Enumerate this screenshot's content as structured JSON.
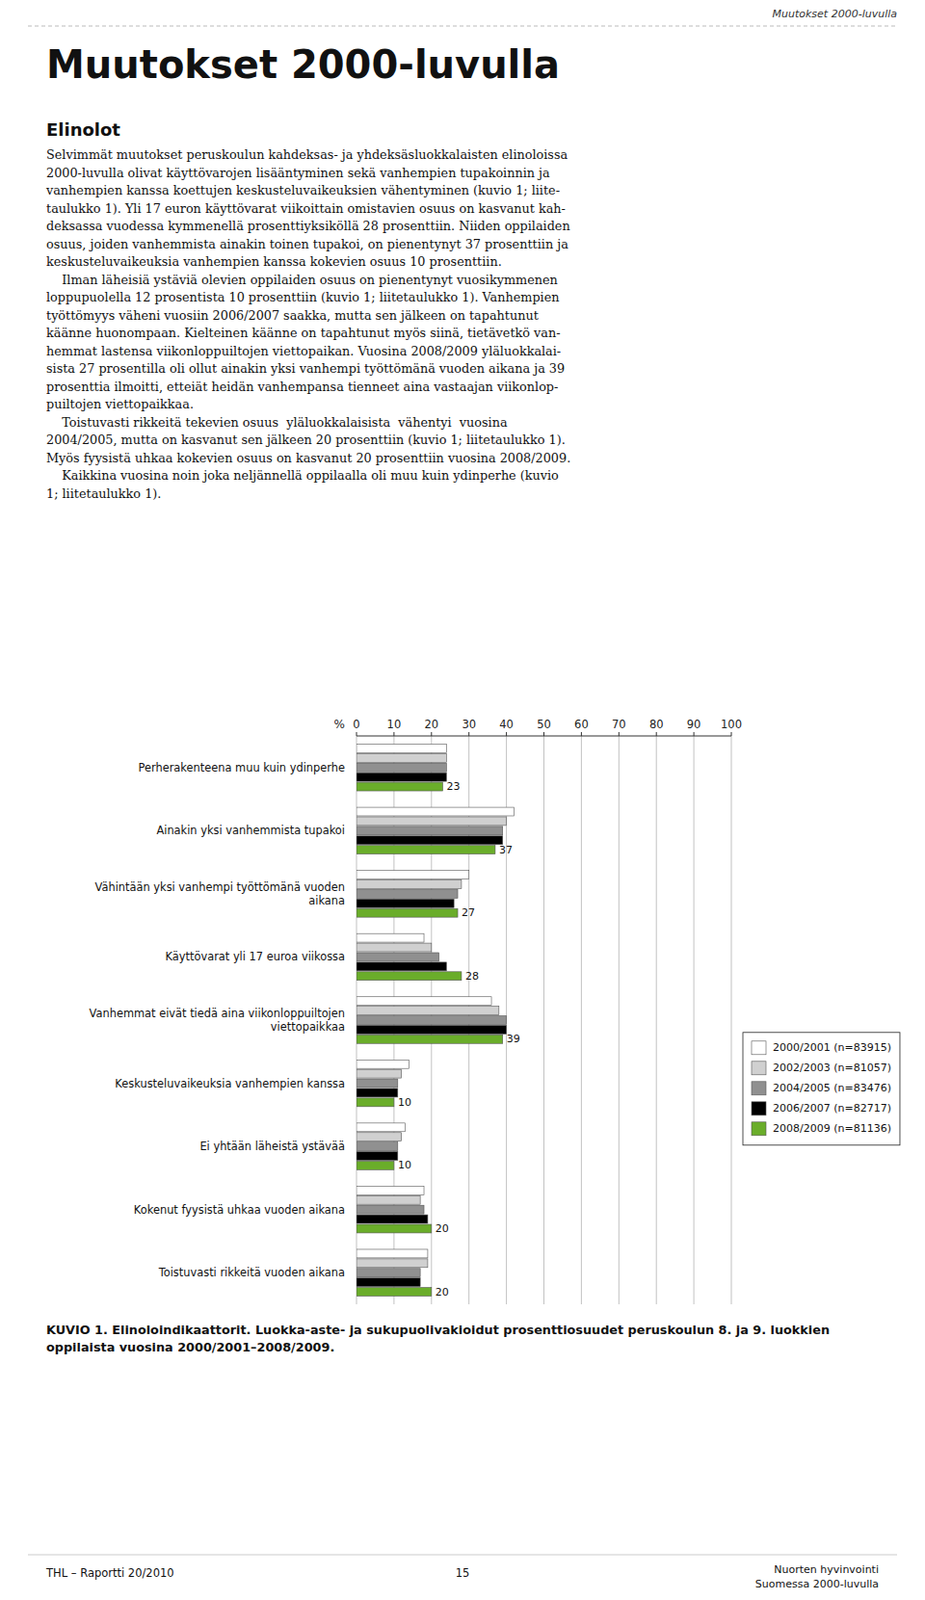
{
  "header": "Muutokset 2000-luvulla",
  "main_title": "Muutokset 2000-luvulla",
  "section_title": "Elinolot",
  "body_lines": [
    "Selvimmät muutokset peruskoulun kahdeksas- ja yhdeksäsluokkalaisten elinoloissa",
    "2000-luvulla olivat käyttövarojen lisääntyminen sekä vanhempien tupakoinnin ja",
    "vanhempien kanssa koettujen keskusteluvaikeuksien vähentyminen (kuvio 1; liite-",
    "taulukko 1). Yli 17 euron käyttövarat viikoittain omistavien osuus on kasvanut kah-",
    "deksassa vuodessa kymmenellä prosenttiyksiköllä 28 prosenttiin. Niiden oppilaiden",
    "osuus, joiden vanhemmista ainakin toinen tupakoi, on pienentynyt 37 prosenttiin ja",
    "keskusteluvaikeuksia vanhempien kanssa kokevien osuus 10 prosenttiin.",
    "    Ilman läheisiä ystäviä olevien oppilaiden osuus on pienentynyt vuosikymmenen",
    "loppupuolella 12 prosentista 10 prosenttiin (kuvio 1; liitetaulukko 1). Vanhempien",
    "työttömyys väheni vuosiin 2006/2007 saakka, mutta sen jälkeen on tapahtunut",
    "käänne huonompaan. Kielteinen käänne on tapahtunut myös siinä, tietävetkö van-",
    "hemmat lastensa viikonloppuiltojen viettopaikan. Vuosina 2008/2009 yläluokkalai-",
    "sista 27 prosentilla oli ollut ainakin yksi vanhempi työttömänä vuoden aikana ja 39",
    "prosenttia ilmoitti, etteiät heidän vanhempansa tienneet aina vastaajan viikonlop-",
    "puiltojen viettopaikkaa.",
    "    Toistuvasti rikkeitä tekevien osuus  yläluokkalaisista  vähentyi  vuosina",
    "2004/2005, mutta on kasvanut sen jälkeen 20 prosenttiin (kuvio 1; liitetaulukko 1).",
    "Myös fyysistä uhkaa kokevien osuus on kasvanut 20 prosenttiin vuosina 2008/2009.",
    "    Kaikkina vuosina noin joka neljännellä oppilaalla oli muu kuin ydinperhe (kuvio",
    "1; liitetaulukko 1)."
  ],
  "footer_left": "THL – Raportti 20/2010",
  "footer_center": "15",
  "footer_right": "Nuorten hyvinvointi\nSuomessa 2000-luvulla",
  "chart_data": {
    "type": "bar",
    "orientation": "horizontal",
    "title": "KUVIO 1. Elinoloindikaattorit. Luokka-aste- ja sukupuolivakioidut prosenttiosuudet peruskoulun 8. ja 9. luokkien oppilaista vuosina 2000/2001–2008/2009.",
    "x_label": "%",
    "categories": [
      "Perherakenteena muu kuin ydinperhe",
      "Ainakin yksi vanhemmista tupakoi",
      "Vähintään yksi vanhempi työttömänä vuoden\naikana",
      "Käyttövarat yli 17 euroa viikossa",
      "Vanhemmat eivät tiedä aina viikonloppuiltojen\nviettopaikkaa",
      "Keskusteluvaikeuksia vanhempien kanssa",
      "Ei yhtään läheistä ystävää",
      "Kokenut fyysistä uhkaa vuoden aikana",
      "Toistuvasti rikkeitä vuoden aikana"
    ],
    "series": [
      {
        "name": "2000/2001 (n=83915)",
        "color": "#ffffff",
        "values": [
          24,
          42,
          30,
          18,
          36,
          14,
          13,
          18,
          19
        ]
      },
      {
        "name": "2002/2003 (n=81057)",
        "color": "#d0d0d0",
        "values": [
          24,
          40,
          28,
          20,
          38,
          12,
          12,
          17,
          19
        ]
      },
      {
        "name": "2004/2005 (n=83476)",
        "color": "#909090",
        "values": [
          24,
          39,
          27,
          22,
          40,
          11,
          11,
          18,
          17
        ]
      },
      {
        "name": "2006/2007 (n=82717)",
        "color": "#000000",
        "values": [
          24,
          39,
          26,
          24,
          40,
          11,
          11,
          19,
          17
        ]
      },
      {
        "name": "2008/2009 (n=81136)",
        "color": "#6aad2a",
        "values": [
          23,
          37,
          27,
          28,
          39,
          10,
          10,
          20,
          20
        ],
        "data_labels": true
      }
    ],
    "xlim": [
      0,
      100
    ],
    "xticks": [
      0,
      10,
      20,
      30,
      40,
      50,
      60,
      70,
      80,
      90,
      100
    ],
    "grid": true,
    "legend": "right"
  }
}
